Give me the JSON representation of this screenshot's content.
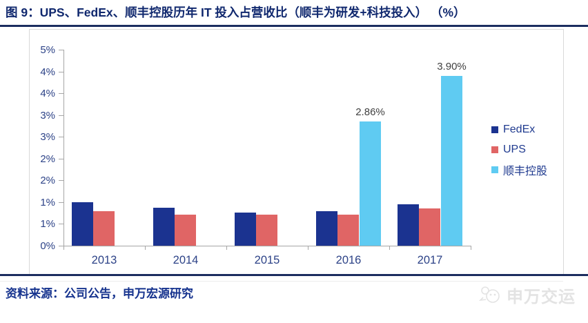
{
  "header": {
    "title": "图 9：UPS、FedEx、顺丰控股历年 IT 投入占营收比（顺丰为研发+科技投入） （%）"
  },
  "chart_data": {
    "type": "bar",
    "title": "UPS、FedEx、顺丰控股历年 IT 投入占营收比",
    "xlabel": "",
    "ylabel": "",
    "categories": [
      "2013",
      "2014",
      "2015",
      "2016",
      "2017"
    ],
    "series": [
      {
        "name": "FedEx",
        "color": "#1b3390",
        "values": [
          1.0,
          0.87,
          0.76,
          0.8,
          0.95
        ],
        "labels": [
          null,
          null,
          null,
          null,
          null
        ]
      },
      {
        "name": "UPS",
        "color": "#e06565",
        "values": [
          0.8,
          0.72,
          0.71,
          0.71,
          0.86
        ],
        "labels": [
          null,
          null,
          null,
          null,
          null
        ]
      },
      {
        "name": "顺丰控股",
        "color": "#5fcbf2",
        "values": [
          null,
          null,
          null,
          2.86,
          3.9
        ],
        "labels": [
          null,
          null,
          null,
          "2.86%",
          "3.90%"
        ]
      }
    ],
    "ylim": [
      0,
      4.5
    ],
    "y_tick_step": 0.5,
    "y_tick_labels_bottom_to_top": [
      "0%",
      "1%",
      "1%",
      "2%",
      "2%",
      "3%",
      "3%",
      "4%",
      "4%",
      "5%"
    ],
    "grid": false,
    "legend_position": "right",
    "axis_color": "#a6a6a6",
    "tick_label_color": "#2c4287",
    "bar_label_color": "#404040"
  },
  "legend": {
    "items": [
      {
        "label": "FedEx",
        "color": "#1b3390"
      },
      {
        "label": "UPS",
        "color": "#e06565"
      },
      {
        "label": "顺丰控股",
        "color": "#5fcbf2"
      }
    ]
  },
  "footer": {
    "source": "资料来源：公司公告，申万宏源研究"
  },
  "watermark": {
    "text": "申万交运",
    "icon": "panda-chat-icon"
  },
  "colors": {
    "title_navy": "#10286e",
    "rule_navy": "#1b2d5f",
    "source_navy": "#16338e",
    "frame_gray": "#d9d9d9",
    "watermark_gray": "#e3e3e3"
  }
}
